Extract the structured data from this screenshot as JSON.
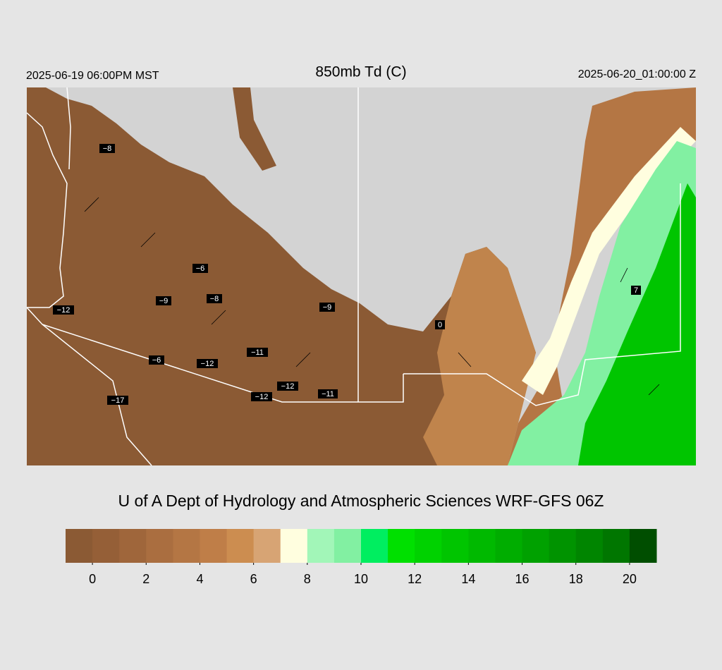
{
  "header": {
    "title": "850mb Td (C)",
    "valid_local": "2025-06-19 06:00PM MST",
    "valid_utc": "2025-06-20_01:00:00 Z"
  },
  "station_labels": [
    "−8",
    "−6",
    "−9",
    "−8",
    "−12",
    "−9",
    "0",
    "7",
    "−6",
    "−12",
    "−11",
    "−17",
    "−12",
    "−12",
    "−11"
  ],
  "footer": "U of A Dept of Hydrology and Atmospheric Sciences WRF-GFS 06Z",
  "colorbar": {
    "xlim": [
      -1,
      21
    ],
    "xticks": [
      0,
      2,
      4,
      6,
      8,
      10,
      12,
      14,
      16,
      18,
      20
    ],
    "colors": [
      "#8b5a34",
      "#955f37",
      "#9f663b",
      "#aa6e40",
      "#b47644",
      "#bf7e48",
      "#cc8d50",
      "#d7a474",
      "#fffedf",
      "#a2f6b8",
      "#82f0a2",
      "#00ee60",
      "#00e000",
      "#00d200",
      "#00c500",
      "#00b900",
      "#00ad00",
      "#00a100",
      "#009300",
      "#008500",
      "#007600",
      "#004e00"
    ]
  }
}
